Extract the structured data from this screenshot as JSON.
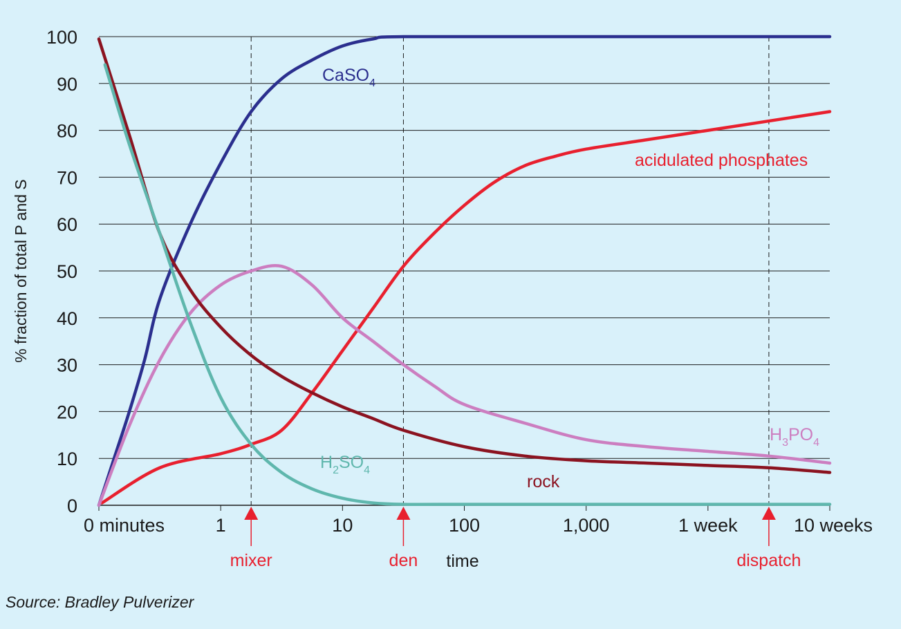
{
  "chart_data": {
    "type": "line",
    "title": "",
    "ylabel": "% fraction of total P and S",
    "xlabel": "time",
    "ylim": [
      0,
      100
    ],
    "y_ticks": [
      0,
      10,
      20,
      30,
      40,
      50,
      60,
      70,
      80,
      90,
      100
    ],
    "x_scale": "logarithmic (labelled time points)",
    "x_ticks": [
      "0 minutes",
      "1",
      "10",
      "100",
      "1,000",
      "1 week",
      "10 weeks"
    ],
    "grid": "horizontal",
    "series": [
      {
        "name": "CaSO4",
        "color": "#2b2f8e",
        "points": [
          [
            0,
            0
          ],
          [
            0.25,
            10
          ],
          [
            0.5,
            20
          ],
          [
            0.75,
            31
          ],
          [
            1.0,
            44
          ],
          [
            1.5,
            60
          ],
          [
            2.0,
            73
          ],
          [
            2.5,
            84
          ],
          [
            3.0,
            91
          ],
          [
            3.5,
            95
          ],
          [
            4.0,
            98
          ],
          [
            4.5,
            99.5
          ],
          [
            5.0,
            100
          ],
          [
            8.0,
            100
          ],
          [
            12.0,
            100
          ]
        ]
      },
      {
        "name": "acidulated phosphates",
        "color": "#e8202e",
        "points": [
          [
            0.05,
            0.5
          ],
          [
            1.0,
            8
          ],
          [
            2.0,
            11
          ],
          [
            2.5,
            13
          ],
          [
            3.0,
            16
          ],
          [
            3.5,
            24
          ],
          [
            4.0,
            33
          ],
          [
            4.5,
            42
          ],
          [
            5.0,
            51
          ],
          [
            5.5,
            58
          ],
          [
            6.0,
            64
          ],
          [
            6.5,
            69
          ],
          [
            7.0,
            72.5
          ],
          [
            7.5,
            74.5
          ],
          [
            8.0,
            76
          ],
          [
            9.0,
            78
          ],
          [
            10.0,
            80
          ],
          [
            11.0,
            82
          ],
          [
            12.0,
            84
          ]
        ]
      },
      {
        "name": "H3PO4",
        "color": "#cc7ec0",
        "points": [
          [
            0,
            0
          ],
          [
            0.5,
            17
          ],
          [
            1.0,
            31
          ],
          [
            1.5,
            41
          ],
          [
            2.0,
            47
          ],
          [
            2.5,
            50
          ],
          [
            3.0,
            51
          ],
          [
            3.5,
            47
          ],
          [
            4.0,
            40
          ],
          [
            4.5,
            35
          ],
          [
            5.0,
            30
          ],
          [
            5.5,
            25.5
          ],
          [
            6.0,
            21.5
          ],
          [
            7.0,
            17.5
          ],
          [
            8.0,
            14
          ],
          [
            9.0,
            12.5
          ],
          [
            10.0,
            11.5
          ],
          [
            11.0,
            10.5
          ],
          [
            12.0,
            9
          ]
        ]
      },
      {
        "name": "rock",
        "color": "#8b1320",
        "points": [
          [
            0,
            99.5
          ],
          [
            0.5,
            79
          ],
          [
            1.0,
            58
          ],
          [
            1.5,
            46
          ],
          [
            2.0,
            38
          ],
          [
            2.5,
            32
          ],
          [
            3.0,
            27.5
          ],
          [
            3.5,
            24
          ],
          [
            4.0,
            21
          ],
          [
            4.5,
            18.5
          ],
          [
            5.0,
            16
          ],
          [
            6.0,
            12.5
          ],
          [
            7.0,
            10.5
          ],
          [
            8.0,
            9.5
          ],
          [
            9.0,
            9
          ],
          [
            10.0,
            8.5
          ],
          [
            11.0,
            8
          ],
          [
            12.0,
            7
          ]
        ]
      },
      {
        "name": "H2SO4",
        "color": "#5fb7ad",
        "points": [
          [
            0.1,
            94
          ],
          [
            0.5,
            77
          ],
          [
            1.0,
            58
          ],
          [
            1.5,
            39
          ],
          [
            2.0,
            23
          ],
          [
            2.5,
            13
          ],
          [
            3.0,
            7
          ],
          [
            3.5,
            3.5
          ],
          [
            4.0,
            1.5
          ],
          [
            4.5,
            0.5
          ],
          [
            5.0,
            0.2
          ],
          [
            6.0,
            0.2
          ],
          [
            12.0,
            0.2
          ]
        ]
      }
    ],
    "series_labels": {
      "CaSO4": {
        "base": "CaSO",
        "sub": "4"
      },
      "acidulated phosphates": {
        "text": "acidulated phosphates"
      },
      "H3PO4": {
        "a": "H",
        "s1": "3",
        "b": "PO",
        "s2": "4"
      },
      "rock": {
        "text": "rock"
      },
      "H2SO4": {
        "a": "H",
        "s1": "2",
        "b": "SO",
        "s2": "4"
      }
    },
    "markers": [
      {
        "label": "mixer",
        "x": 2.5
      },
      {
        "label": "den",
        "x": 5.0
      },
      {
        "label": "dispatch",
        "x": 11.0
      }
    ],
    "marker_color": "#e8202e"
  },
  "source_note": "Source: Bradley Pulverizer"
}
